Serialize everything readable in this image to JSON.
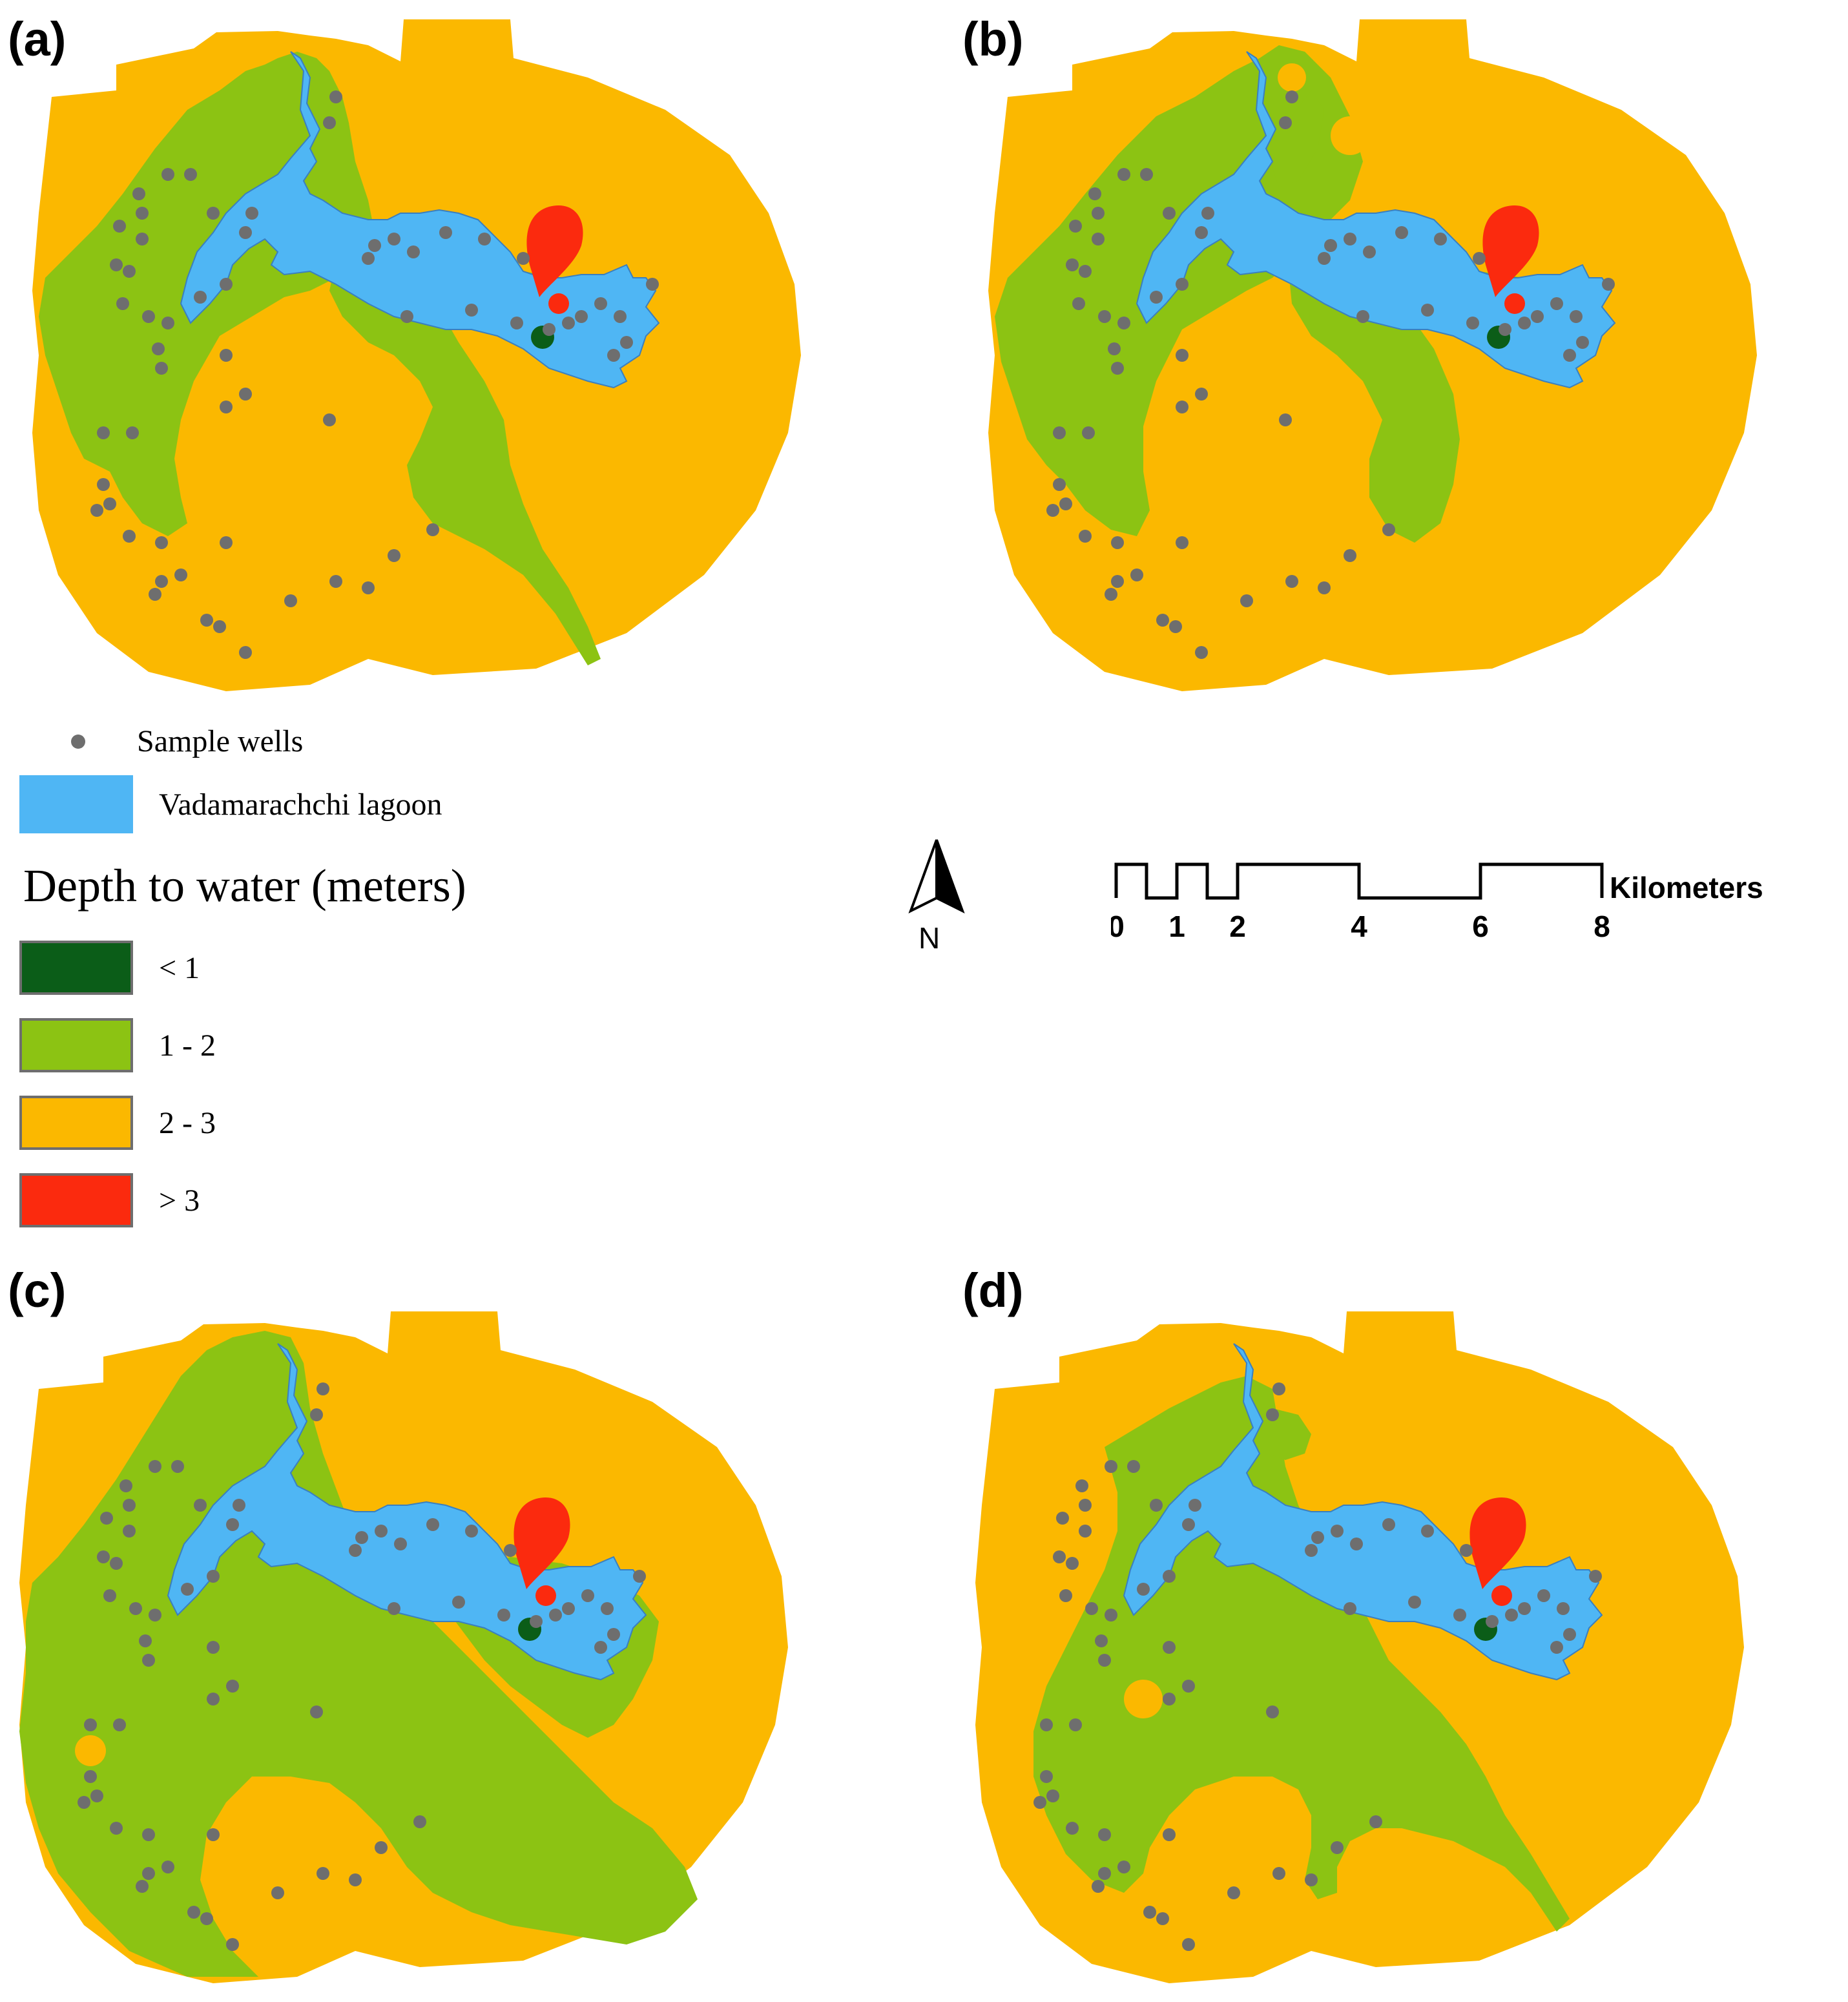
{
  "panels": [
    {
      "label": "(a)",
      "variant": "a"
    },
    {
      "label": "(b)",
      "variant": "b"
    },
    {
      "label": "(c)",
      "variant": "c"
    },
    {
      "label": "(d)",
      "variant": "d"
    }
  ],
  "legend": {
    "wells_label": "Sample wells",
    "lagoon_label": "Vadamarachchi lagoon",
    "title": "Depth to water (meters)",
    "classes": [
      {
        "label": "< 1",
        "color": "#0b5d18"
      },
      {
        "label": "1 - 2",
        "color": "#8cc313"
      },
      {
        "label": "2 - 3",
        "color": "#fbb800"
      },
      {
        "label": "> 3",
        "color": "#fb2a0e"
      }
    ]
  },
  "colors": {
    "lagoon": "#4fb6f4",
    "well": "#6e6e6e",
    "very_shallow": "#0b5d18",
    "shallow": "#8cc313",
    "medium": "#fbb800",
    "deep": "#fb2a0e"
  },
  "north_arrow": {
    "label": "N"
  },
  "scale": {
    "units": "Kilometers",
    "ticks": [
      "0",
      "1",
      "2",
      "4",
      "6",
      "8"
    ]
  }
}
